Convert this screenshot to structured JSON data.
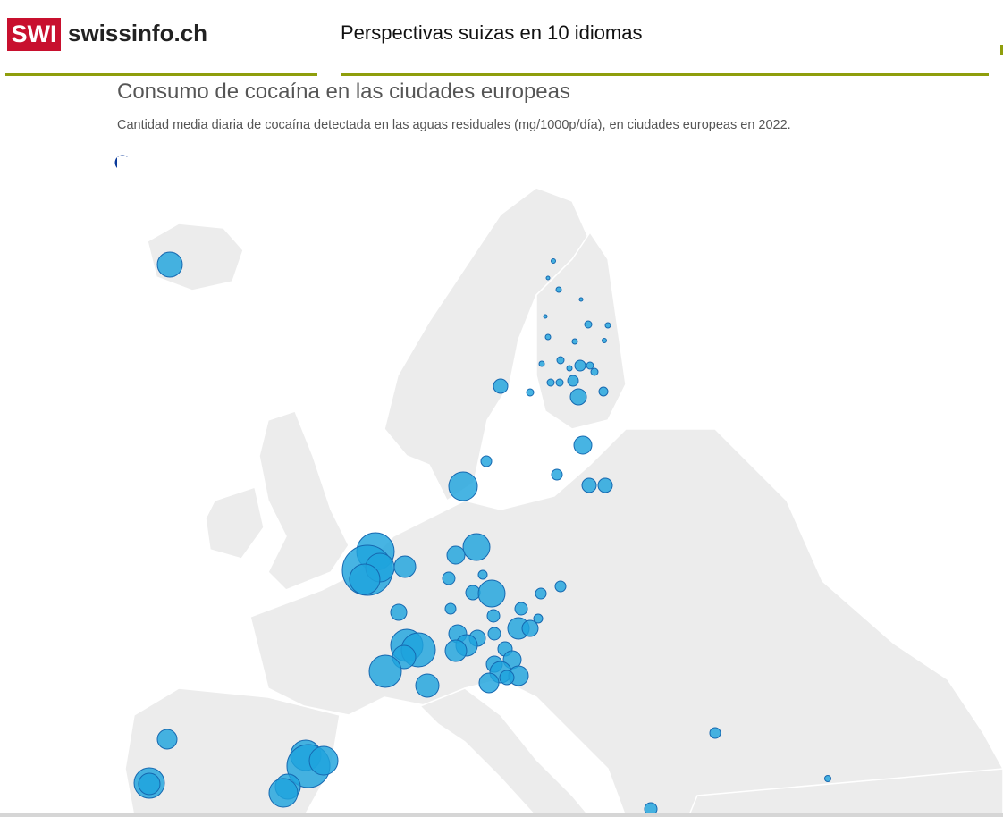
{
  "header": {
    "logo": "SWI",
    "site": "swissinfo.ch",
    "tagline": "Perspectivas suizas en 10 idiomas"
  },
  "article": {
    "title": "Consumo de cocaína en las ciudades europeas",
    "subtitle": "Cantidad media diaria de cocaína detectada en las aguas residuales (mg/1000p/día), en ciudades europeas en 2022."
  }
}
